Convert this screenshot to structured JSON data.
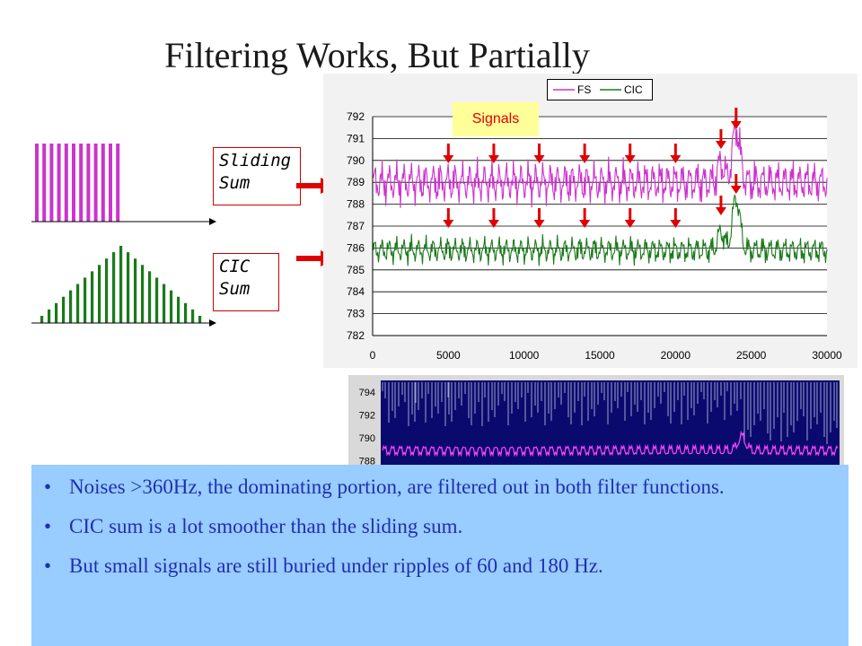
{
  "slide": {
    "title": "Filtering Works, But Partially"
  },
  "labels": {
    "sliding_sum": [
      "Sliding",
      "Sum"
    ],
    "cic_sum": [
      "CIC",
      "Sum"
    ],
    "signals": "Signals"
  },
  "colors": {
    "fs": "#cc33cc",
    "cic": "#1a7a1a",
    "arrow": "#e00000",
    "panel": "#99ccff",
    "bullet_text": "#1f2fb0",
    "scope_bg": "#0a0a6e"
  },
  "chart_data": [
    {
      "type": "line",
      "legend": {
        "placement": "top-right",
        "entries": [
          "FS",
          "CIC"
        ]
      },
      "series": [
        {
          "name": "FS",
          "color": "#cc33cc",
          "baseline": 789,
          "ripple": 0.55,
          "peak_x": 24000,
          "peak_y": 791.5
        },
        {
          "name": "CIC",
          "color": "#1a7a1a",
          "baseline": 785.9,
          "ripple": 0.35,
          "peak_x": 24000,
          "peak_y": 788.3
        }
      ],
      "xlim": [
        0,
        30000
      ],
      "ylim": [
        782,
        792
      ],
      "x_ticks": [
        "0",
        "5000",
        "10000",
        "15000",
        "20000",
        "25000",
        "30000"
      ],
      "y_ticks": [
        "792",
        "791",
        "790",
        "789",
        "788",
        "787",
        "786",
        "785",
        "784",
        "783",
        "782"
      ],
      "grid": "horizontal",
      "signal_marker_x": [
        5000,
        8000,
        11000,
        14000,
        17000,
        20000,
        23000,
        24000
      ]
    },
    {
      "type": "line",
      "y_ticks": [
        "794",
        "792",
        "790",
        "788"
      ],
      "ylim": [
        787.5,
        795
      ],
      "background": "#0a0a6e"
    }
  ],
  "bullets": [
    "Noises >360Hz, the dominating portion, are filtered out in both filter functions.",
    "CIC sum is a lot smoother than the sliding sum.",
    "But small signals are still buried under ripples of 60 and 180 Hz."
  ]
}
